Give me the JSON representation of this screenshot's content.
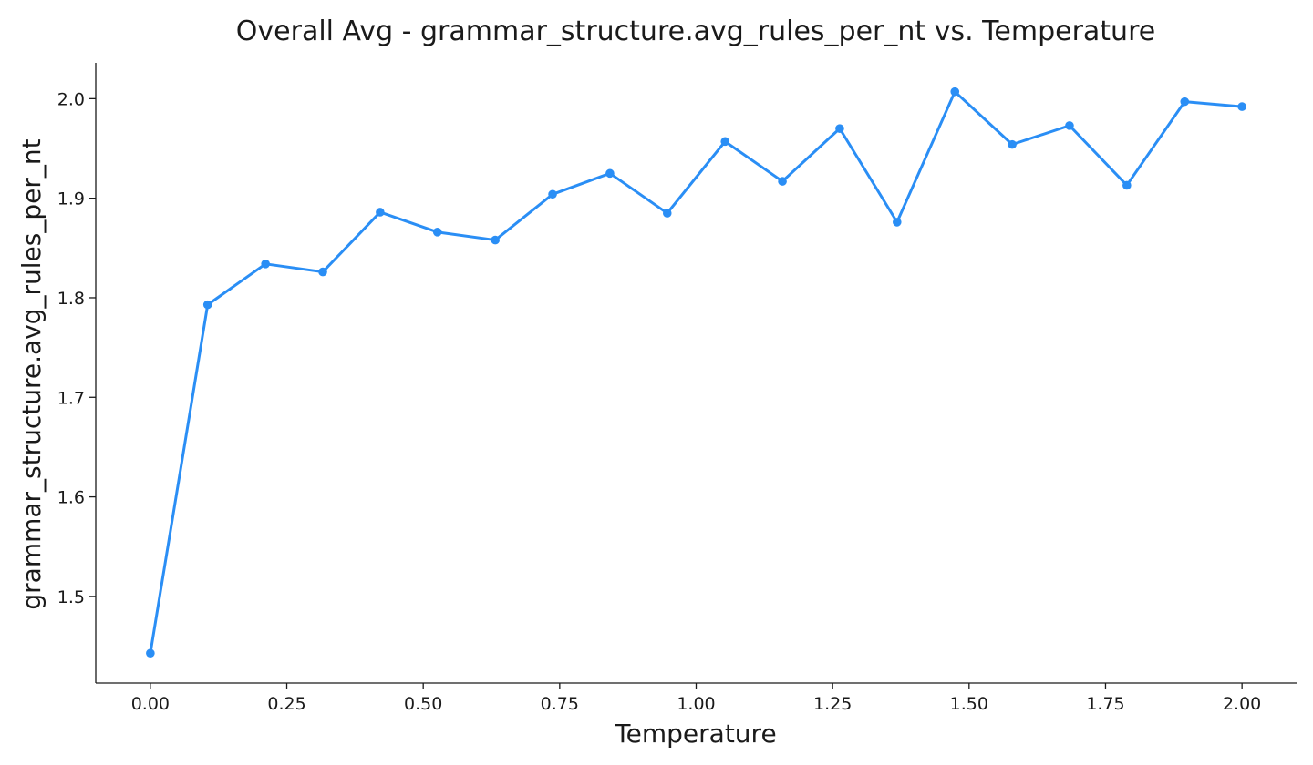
{
  "chart_data": {
    "type": "line",
    "title": "Overall Avg - grammar_structure.avg_rules_per_nt vs. Temperature",
    "xlabel": "Temperature",
    "ylabel": "grammar_structure.avg_rules_per_nt",
    "xlim": [
      -0.1,
      2.1
    ],
    "ylim": [
      1.413,
      2.036
    ],
    "grid": false,
    "legend": "none",
    "color": "#2a8ef5",
    "x_ticks": [
      0.0,
      0.25,
      0.5,
      0.75,
      1.0,
      1.25,
      1.5,
      1.75,
      2.0
    ],
    "x_tick_labels": [
      "0.00",
      "0.25",
      "0.50",
      "0.75",
      "1.00",
      "1.25",
      "1.50",
      "1.75",
      "2.00"
    ],
    "y_ticks": [
      1.5,
      1.6,
      1.7,
      1.8,
      1.9,
      2.0
    ],
    "y_tick_labels": [
      "1.5",
      "1.6",
      "1.7",
      "1.8",
      "1.9",
      "2.0"
    ],
    "series": [
      {
        "x": [
          0.0,
          0.105,
          0.211,
          0.316,
          0.421,
          0.526,
          0.632,
          0.737,
          0.842,
          0.947,
          1.053,
          1.158,
          1.263,
          1.368,
          1.474,
          1.579,
          1.684,
          1.789,
          1.895,
          2.0
        ],
        "y": [
          1.443,
          1.793,
          1.834,
          1.826,
          1.886,
          1.866,
          1.858,
          1.904,
          1.925,
          1.885,
          1.957,
          1.917,
          1.97,
          1.876,
          2.007,
          1.954,
          1.973,
          1.913,
          1.997,
          1.992
        ]
      }
    ]
  }
}
